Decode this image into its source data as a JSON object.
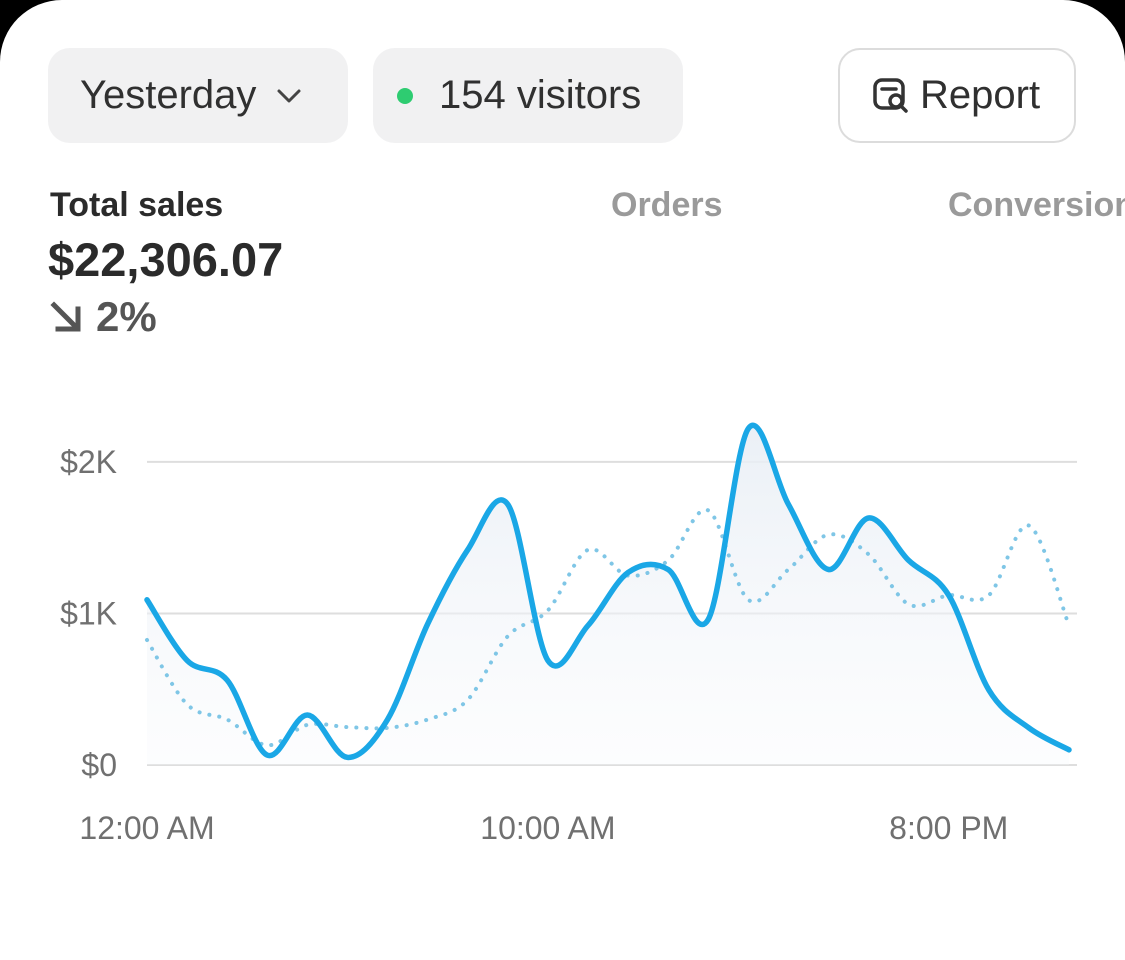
{
  "controls": {
    "period": "Yesterday",
    "visitors": "154 visitors",
    "report": "Report"
  },
  "tabs": [
    "Total sales",
    "Orders",
    "Conversion"
  ],
  "metric": {
    "value": "$22,306.07",
    "change": "2%"
  },
  "chart_data": {
    "type": "line",
    "categories": [
      "12:00 AM",
      null,
      null,
      null,
      null,
      null,
      null,
      null,
      null,
      null,
      "10:00 AM",
      null,
      null,
      null,
      null,
      null,
      null,
      null,
      null,
      null,
      "8:00 PM",
      null,
      null,
      null
    ],
    "series": [
      {
        "color": "#1aa7e6",
        "style": "solid",
        "fill": true,
        "values": [
          1090,
          690,
          560,
          65,
          330,
          50,
          300,
          930,
          1420,
          1720,
          690,
          920,
          1270,
          1290,
          960,
          2220,
          1720,
          1290,
          1630,
          1350,
          1120,
          495,
          245,
          100
        ]
      },
      {
        "color": "#7fc6e6",
        "style": "dotted",
        "fill": false,
        "values": [
          825,
          400,
          300,
          130,
          265,
          250,
          245,
          300,
          430,
          850,
          1020,
          1420,
          1250,
          1350,
          1680,
          1090,
          1290,
          1520,
          1390,
          1060,
          1120,
          1120,
          1580,
          920
        ]
      }
    ],
    "ylim": [
      0,
      2250
    ],
    "yticks": [
      {
        "value": 0,
        "label": "$0"
      },
      {
        "value": 1000,
        "label": "$1K"
      },
      {
        "value": 2000,
        "label": "$2K"
      }
    ],
    "grid": true
  }
}
